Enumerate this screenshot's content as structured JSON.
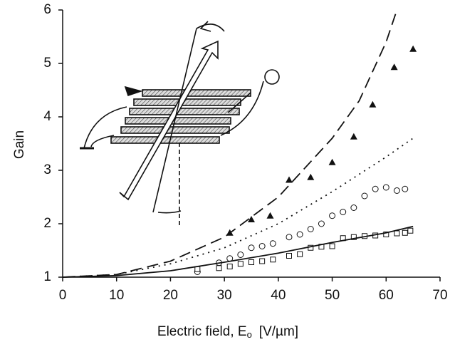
{
  "chart_data": {
    "type": "scatter",
    "xlabel": "Electric field,  E",
    "xlabel_subscript": "o",
    "xlabel_units": "[V/µm]",
    "ylabel": "Gain",
    "xlim": [
      0,
      70
    ],
    "ylim": [
      1,
      6
    ],
    "xticks": [
      0,
      10,
      20,
      30,
      40,
      50,
      60,
      70
    ],
    "yticks": [
      1,
      2,
      3,
      4,
      5,
      6
    ],
    "color": "#111111",
    "series": [
      {
        "style": "triangle",
        "x": [
          31,
          35,
          38.5,
          42,
          46,
          50,
          54,
          57.5,
          61.5,
          65
        ],
        "values": [
          1.83,
          2.08,
          2.15,
          2.82,
          2.87,
          3.15,
          3.63,
          4.23,
          4.93,
          5.27
        ]
      },
      {
        "style": "circle",
        "x": [
          25,
          29,
          31,
          33,
          35,
          37,
          39,
          42,
          44,
          46,
          48,
          50,
          52,
          54,
          56,
          58,
          60,
          62,
          63.5
        ],
        "values": [
          1.1,
          1.27,
          1.35,
          1.42,
          1.55,
          1.58,
          1.63,
          1.75,
          1.8,
          1.9,
          2.0,
          2.15,
          2.22,
          2.3,
          2.52,
          2.65,
          2.68,
          2.62,
          2.65
        ]
      },
      {
        "style": "square",
        "x": [
          25,
          29,
          31,
          33,
          35,
          37,
          39,
          42,
          44,
          46,
          48,
          50,
          52,
          54,
          56,
          58,
          60,
          62,
          63.5,
          64.5
        ],
        "values": [
          1.15,
          1.17,
          1.2,
          1.25,
          1.28,
          1.3,
          1.33,
          1.4,
          1.43,
          1.55,
          1.57,
          1.58,
          1.73,
          1.75,
          1.77,
          1.78,
          1.8,
          1.82,
          1.83,
          1.87
        ]
      },
      {
        "style": "dashed",
        "x": [
          0,
          10,
          20,
          30,
          40,
          50,
          55,
          60,
          62
        ],
        "values": [
          1,
          1.05,
          1.3,
          1.75,
          2.5,
          3.6,
          4.3,
          5.4,
          6.0
        ]
      },
      {
        "style": "dotted",
        "x": [
          0,
          10,
          20,
          30,
          40,
          50,
          60,
          65
        ],
        "values": [
          1,
          1.05,
          1.25,
          1.55,
          2.0,
          2.6,
          3.25,
          3.6
        ]
      },
      {
        "style": "solid",
        "x": [
          0,
          10,
          20,
          30,
          40,
          50,
          60,
          65
        ],
        "values": [
          1,
          1.03,
          1.12,
          1.28,
          1.45,
          1.65,
          1.83,
          1.95
        ]
      }
    ]
  }
}
